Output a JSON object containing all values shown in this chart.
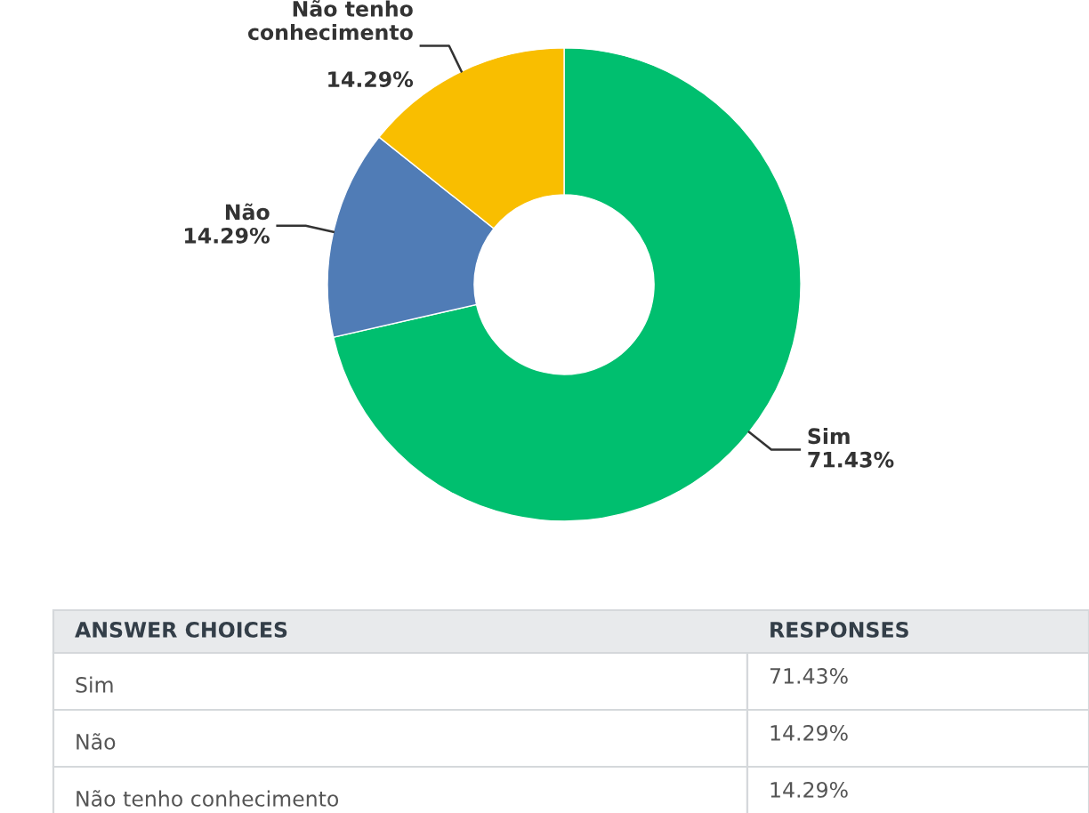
{
  "chart_data": {
    "type": "donut",
    "categories": [
      "Sim",
      "Não",
      "Não tenho conhecimento"
    ],
    "values": [
      71.43,
      14.29,
      14.29
    ],
    "colors": [
      "#00bf6f",
      "#507cb6",
      "#f9be00"
    ],
    "value_labels": [
      "71.43%",
      "14.29%",
      "14.29%"
    ],
    "annotations": [
      "ANSWER CHOICES",
      "RESPONSES"
    ]
  }
}
